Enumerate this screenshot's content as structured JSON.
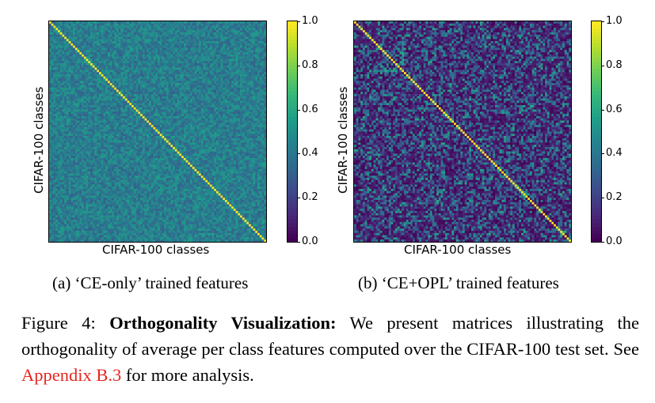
{
  "chart_data": [
    {
      "type": "heatmap",
      "xlabel": "CIFAR-100 classes",
      "ylabel": "CIFAR-100 classes",
      "n_classes": 100,
      "diagonal_value": 1.0,
      "offdiag_typical_range": [
        0.3,
        0.55
      ],
      "colormap": "viridis",
      "colorbar_ticks": [
        "0.0",
        "0.2",
        "0.4",
        "0.6",
        "0.8",
        "1.0"
      ],
      "colorbar_range": [
        0.0,
        1.0
      ],
      "subcaption": "(a) ‘CE-only’ trained features"
    },
    {
      "type": "heatmap",
      "xlabel": "CIFAR-100 classes",
      "ylabel": "CIFAR-100 classes",
      "n_classes": 100,
      "diagonal_value": 1.0,
      "offdiag_typical_range": [
        0.0,
        0.6
      ],
      "colormap": "viridis",
      "colorbar_ticks": [
        "0.0",
        "0.2",
        "0.4",
        "0.6",
        "0.8",
        "1.0"
      ],
      "colorbar_range": [
        0.0,
        1.0
      ],
      "subcaption": "(b) ‘CE+OPL’ trained features"
    }
  ],
  "caption": {
    "label": "Figure 4:",
    "title": "Orthogonality Visualization:",
    "text_before_link": "We present matrices illustrating the orthogonality of average per class features computed over the CIFAR-100 test set. See",
    "link": "Appendix B.3",
    "text_after_link": "for more analysis."
  }
}
